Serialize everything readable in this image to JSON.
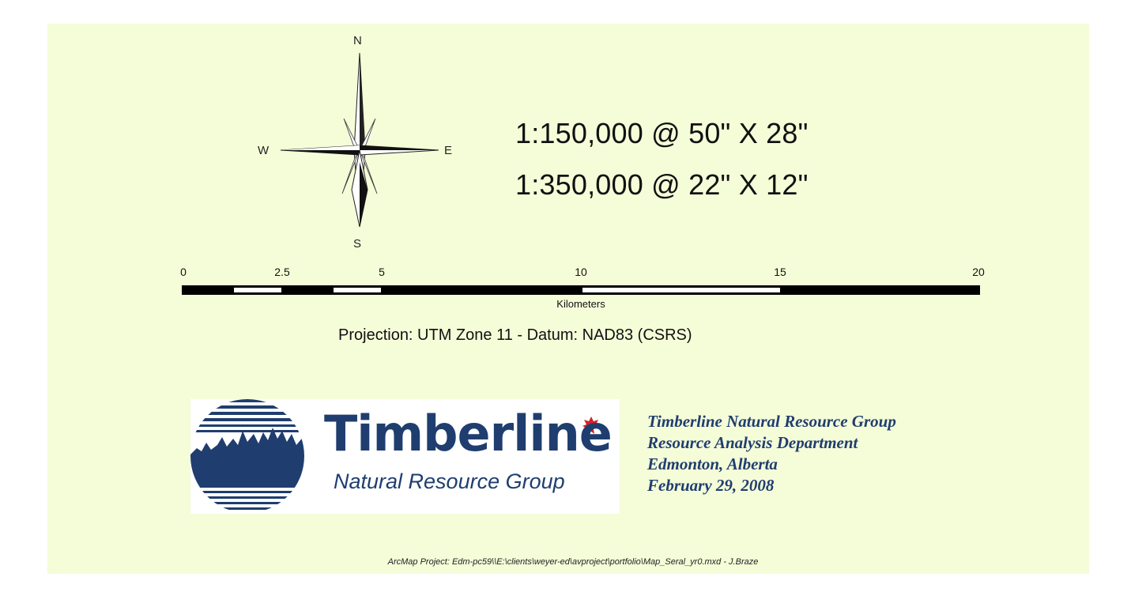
{
  "compass": {
    "north": "N",
    "south": "S",
    "east": "E",
    "west": "W"
  },
  "map_scales": [
    "1:150,000 @ 50\" X 28\"",
    "1:350,000 @ 22\" X 12\""
  ],
  "scale_bar": {
    "ticks": [
      "0",
      "2.5",
      "5",
      "10",
      "15",
      "20"
    ],
    "units": "Kilometers"
  },
  "projection": "Projection: UTM Zone 11  -  Datum: NAD83 (CSRS)",
  "logo": {
    "wordmark": "Timberline",
    "tagline": "Natural Resource Group"
  },
  "organization": [
    "Timberline Natural Resource Group",
    "Resource Analysis Department",
    "Edmonton, Alberta",
    "February 29, 2008"
  ],
  "footer": "ArcMap Project: Edm-pc59\\\\E:\\clients\\weyer-ed\\avproject\\portfolio\\Map_Seral_yr0.mxd - J.Braze",
  "colors": {
    "background": "#f5fcd8",
    "brand_blue": "#1f3e6f"
  }
}
